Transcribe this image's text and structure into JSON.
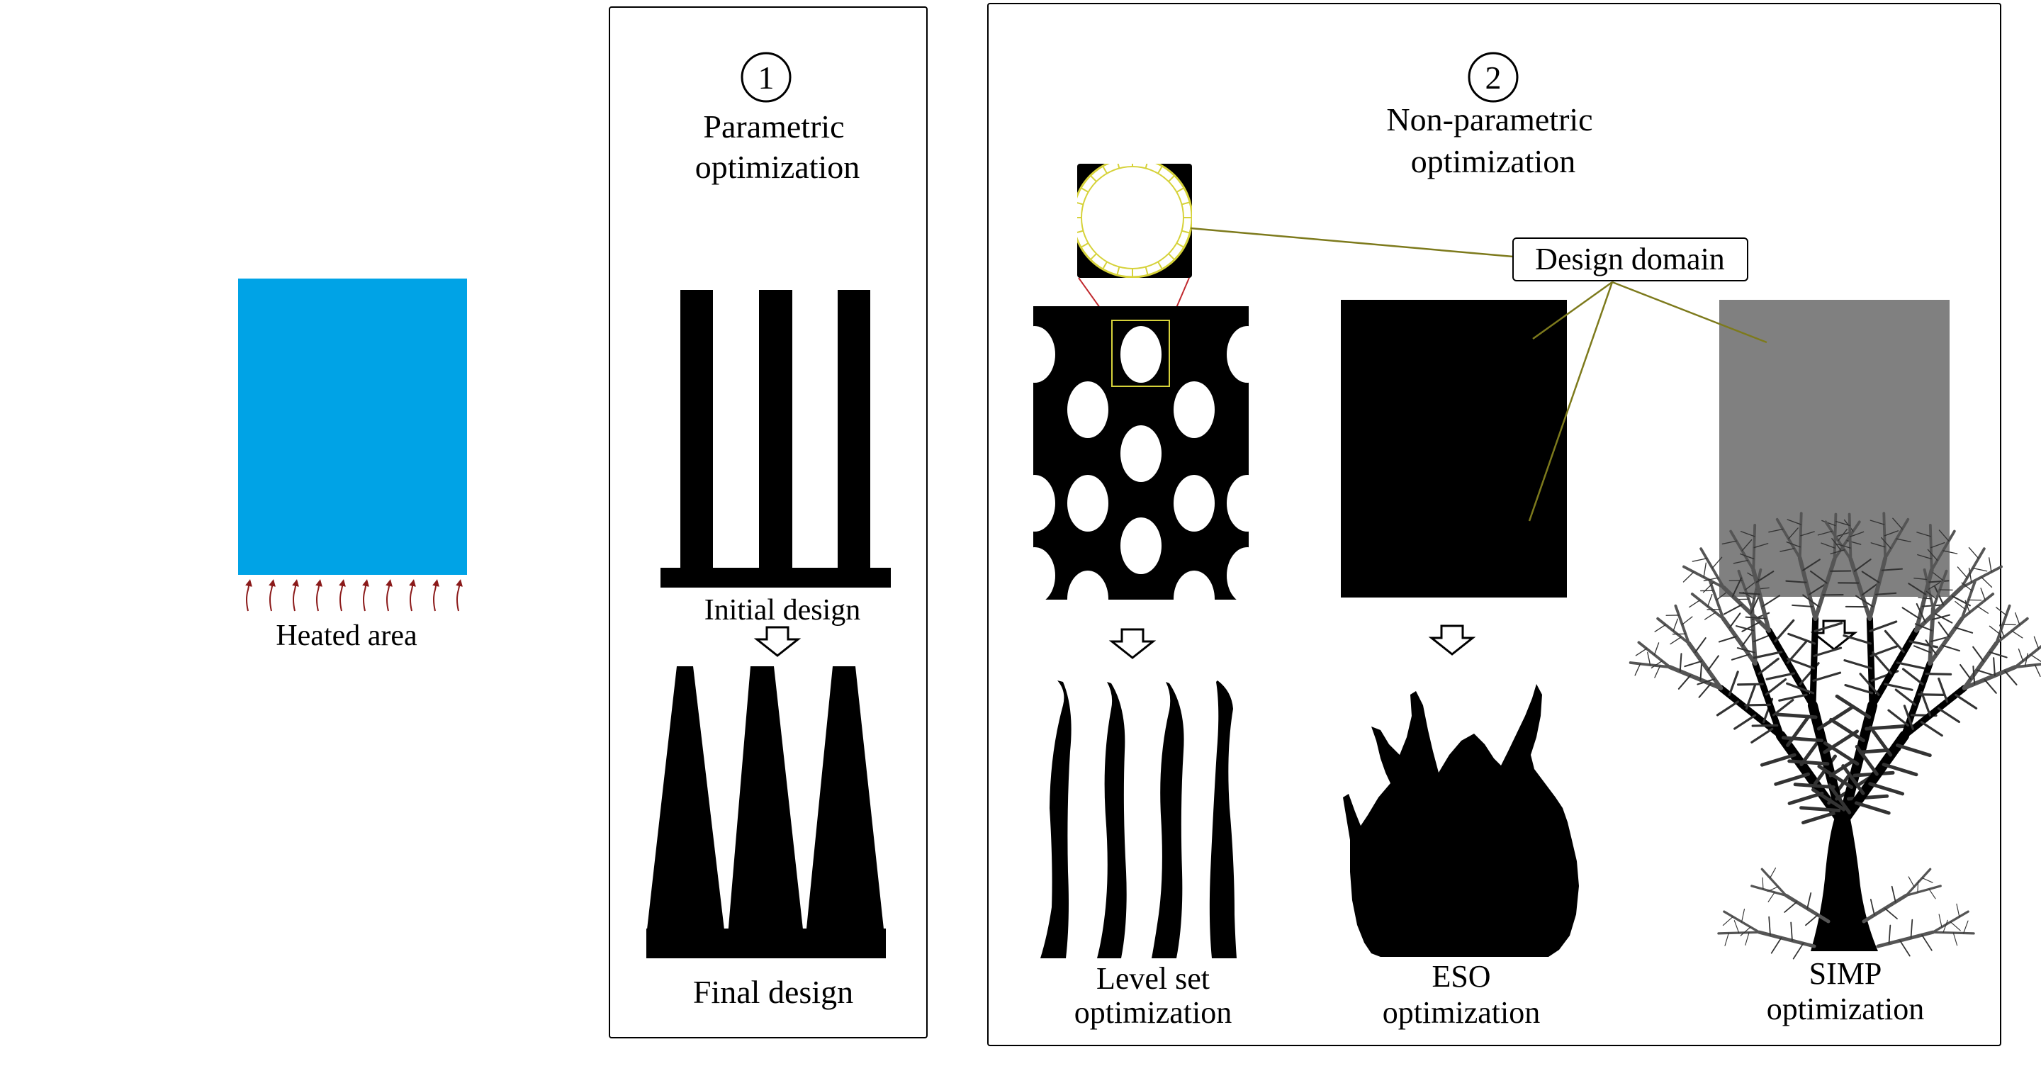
{
  "heated_area": {
    "label": "Heated area",
    "color": "#00a3e6",
    "arrow_color": "#8b1a1a"
  },
  "panel_parametric": {
    "number": "1",
    "title_line1": "Parametric",
    "title_line2": "optimization",
    "initial_label": "Initial design",
    "final_label": "Final design"
  },
  "panel_nonparametric": {
    "number": "2",
    "title_line1": "Non-parametric",
    "title_line2": "optimization",
    "callout_label": "Design domain",
    "callout_color": "#7d7a1c",
    "zoom_connector_color": "#c0282d",
    "simp_domain_color": "#808080",
    "methods": [
      {
        "line1": "Level set",
        "line2": "optimization"
      },
      {
        "line1": "ESO",
        "line2": "optimization"
      },
      {
        "line1": "SIMP",
        "line2": "optimization"
      }
    ]
  }
}
